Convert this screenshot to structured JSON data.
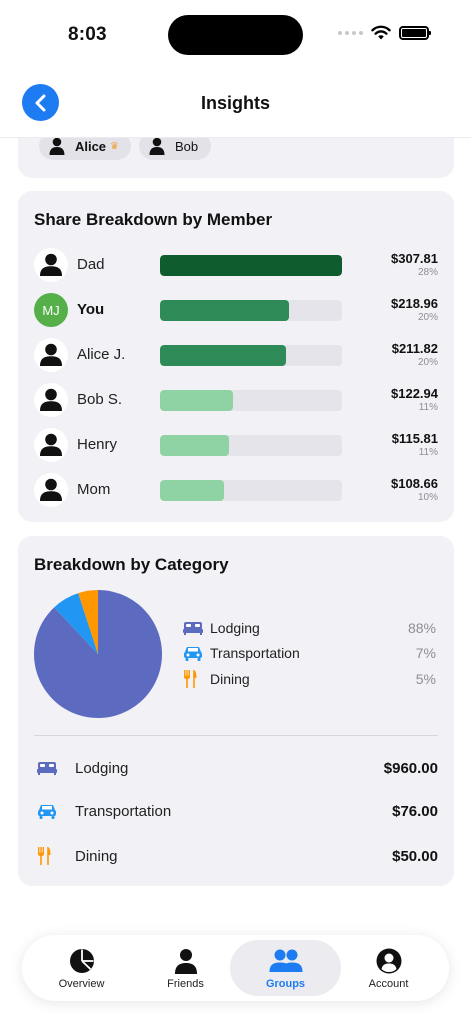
{
  "status_bar": {
    "time": "8:03"
  },
  "nav": {
    "title": "Insights"
  },
  "top_card": {
    "chips": [
      {
        "name": "Alice",
        "owner": true
      },
      {
        "name": "Bob",
        "owner": false
      }
    ]
  },
  "share_breakdown": {
    "title": "Share Breakdown by Member",
    "members": [
      {
        "name": "Dad",
        "amount": "$307.81",
        "percent": "28%",
        "share": 1.0,
        "color": "#0f5c2e",
        "initials": ""
      },
      {
        "name": "You",
        "amount": "$218.96",
        "percent": "20%",
        "share": 0.71,
        "color": "#2e8b57",
        "initials": "MJ"
      },
      {
        "name": "Alice J.",
        "amount": "$211.82",
        "percent": "20%",
        "share": 0.69,
        "color": "#2e8b57",
        "initials": ""
      },
      {
        "name": "Bob S.",
        "amount": "$122.94",
        "percent": "11%",
        "share": 0.4,
        "color": "#8fd3a5",
        "initials": ""
      },
      {
        "name": "Henry",
        "amount": "$115.81",
        "percent": "11%",
        "share": 0.38,
        "color": "#8fd3a5",
        "initials": ""
      },
      {
        "name": "Mom",
        "amount": "$108.66",
        "percent": "10%",
        "share": 0.35,
        "color": "#8fd3a5",
        "initials": ""
      }
    ]
  },
  "category_breakdown": {
    "title": "Breakdown by Category",
    "chart_data": {
      "type": "pie",
      "slices": [
        {
          "label": "Lodging",
          "value": 88,
          "color": "#5c6bc0"
        },
        {
          "label": "Transportation",
          "value": 7,
          "color": "#2196f3"
        },
        {
          "label": "Dining",
          "value": 5,
          "color": "#ff9800"
        }
      ]
    },
    "legend": [
      {
        "label": "Lodging",
        "percent": "88%",
        "icon": "bed-icon",
        "color": "#5c6bc0"
      },
      {
        "label": "Transportation",
        "percent": "7%",
        "icon": "car-icon",
        "color": "#2196f3"
      },
      {
        "label": "Dining",
        "percent": "5%",
        "icon": "fork-knife-icon",
        "color": "#ff9800"
      }
    ],
    "totals": [
      {
        "label": "Lodging",
        "amount": "$960.00",
        "icon": "bed-icon"
      },
      {
        "label": "Transportation",
        "amount": "$76.00",
        "icon": "car-icon"
      },
      {
        "label": "Dining",
        "amount": "$50.00",
        "icon": "fork-knife-icon"
      }
    ]
  },
  "tabbar": {
    "tabs": [
      {
        "label": "Overview",
        "icon": "pie-chart-icon",
        "active": false
      },
      {
        "label": "Friends",
        "icon": "person-icon",
        "active": false
      },
      {
        "label": "Groups",
        "icon": "people-icon",
        "active": true
      },
      {
        "label": "Account",
        "icon": "account-circle-icon",
        "active": false
      }
    ],
    "accent": "#1e7cf2"
  }
}
